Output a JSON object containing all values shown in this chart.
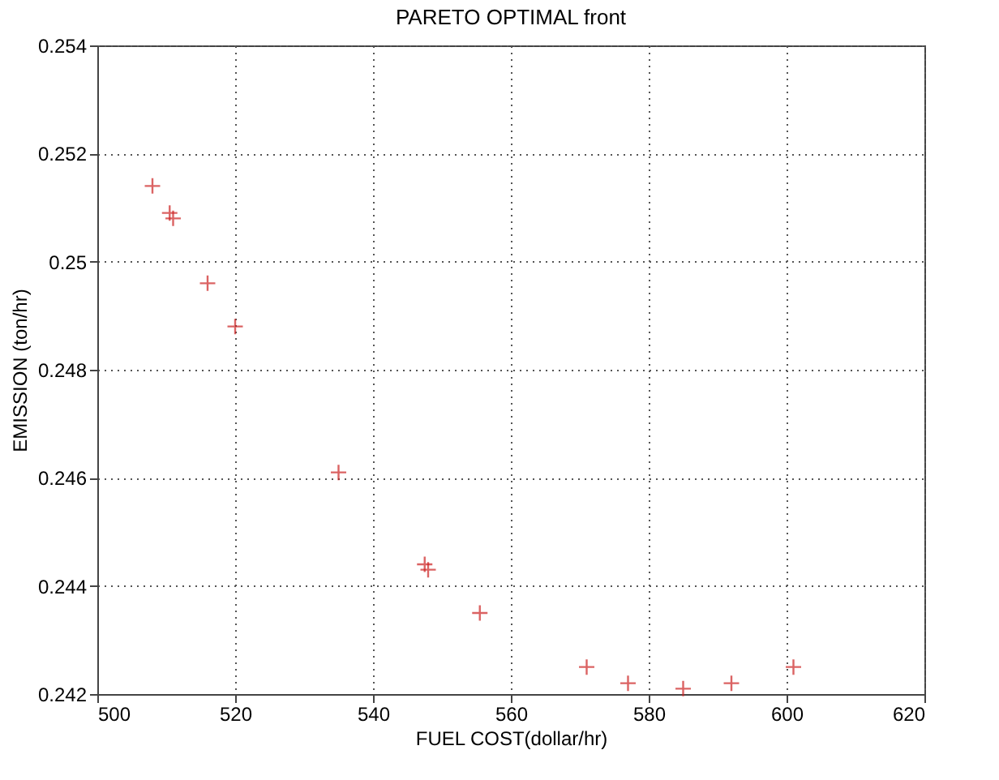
{
  "chart_data": {
    "type": "scatter",
    "title": "PARETO OPTIMAL front",
    "xlabel": "FUEL COST(dollar/hr)",
    "ylabel": "EMISSION (ton/hr)",
    "x": [
      508,
      510.5,
      511,
      516,
      520,
      535,
      547.5,
      548,
      555.5,
      571,
      577,
      585,
      592,
      601
    ],
    "series": [
      {
        "color": "#cc2222",
        "values": [
          0.2514,
          0.2509,
          0.2508,
          0.2496,
          0.2488,
          0.2461,
          0.2444,
          0.2443,
          0.2435,
          0.2425,
          0.2422,
          0.2421,
          0.2422,
          0.2425
        ]
      }
    ],
    "xlim": [
      500,
      620
    ],
    "xticks": [
      500,
      520,
      540,
      560,
      580,
      600,
      620
    ],
    "ylim": [
      0.242,
      0.254
    ],
    "yticks": [
      0.242,
      0.244,
      0.246,
      0.248,
      {
        "value": 0.25,
        "label": "0.25"
      },
      0.252,
      0.254
    ],
    "grid": true,
    "marker": "cross"
  }
}
